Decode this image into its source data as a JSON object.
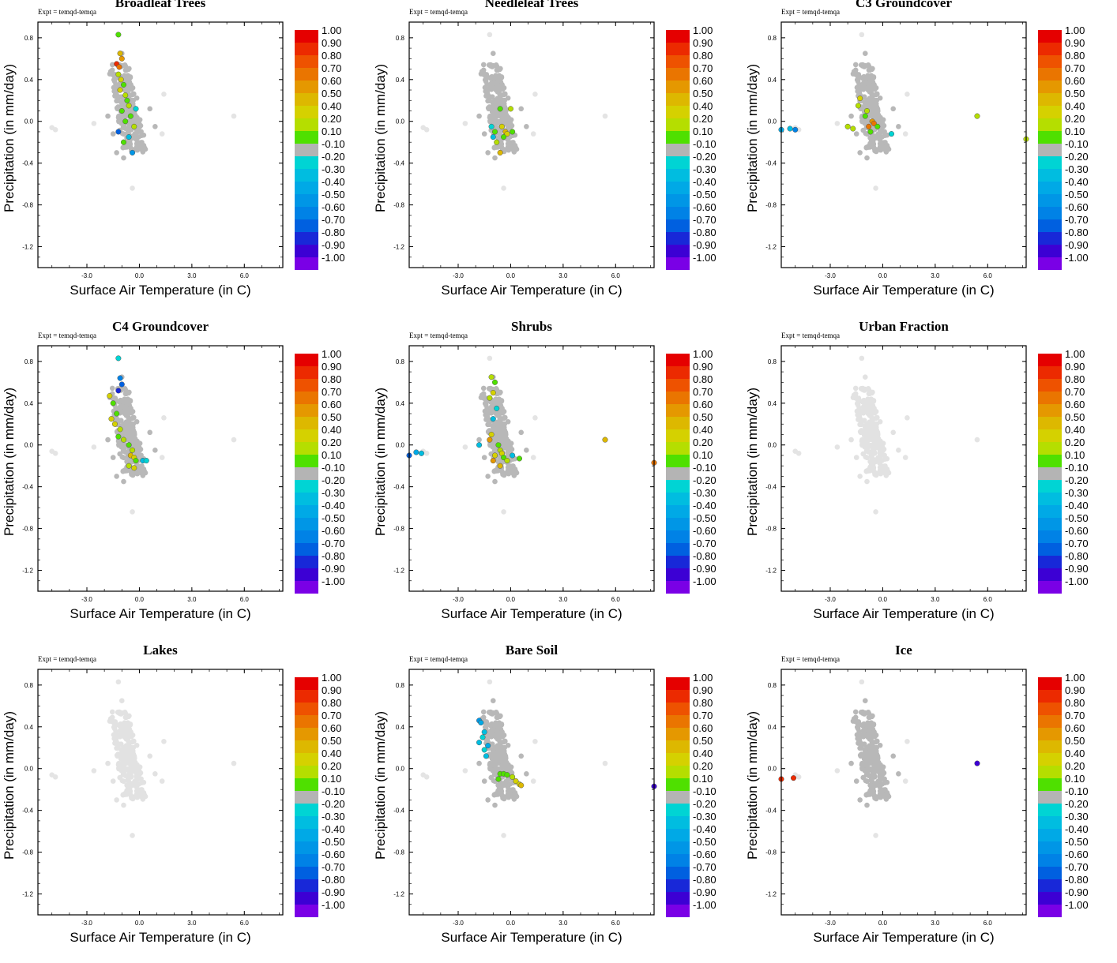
{
  "expt_label": "Expt = temqd-temqa",
  "axis_labels": {
    "x": "Surface Air Temperature (in C)",
    "y": "Precipitation (in mm/day)"
  },
  "colorbar": {
    "labels": [
      "1.00",
      "0.90",
      "0.80",
      "0.70",
      "0.60",
      "0.50",
      "0.40",
      "0.20",
      "0.10",
      "-0.10",
      "-0.20",
      "-0.30",
      "-0.40",
      "-0.50",
      "-0.60",
      "-0.70",
      "-0.80",
      "-0.90",
      "-1.00"
    ],
    "colors": [
      "#e50000",
      "#ec2a00",
      "#ee5200",
      "#ea7500",
      "#e59800",
      "#ddb800",
      "#d5d100",
      "#b5de00",
      "#4fe000",
      "#b4b4b4",
      "#00d4d4",
      "#00bde0",
      "#00a9e6",
      "#0096e6",
      "#0082e6",
      "#0060e0",
      "#1828d8",
      "#3c00d4",
      "#7a00e6"
    ]
  },
  "chart_data": [
    {
      "type": "scatter",
      "title": "Broadleaf Trees",
      "xlabel": "Surface Air Temperature (in C)",
      "ylabel": "Precipitation (in mm/day)",
      "xlim": [
        -5.8,
        8.2
      ],
      "ylim": [
        -1.4,
        0.95
      ],
      "xticks": [
        "-3.0",
        "0.0",
        "3.0",
        "6.0"
      ],
      "yticks": [
        "0.8",
        "0.4",
        "0.0",
        "-0.4",
        "-0.8",
        "-1.2"
      ],
      "colored_points": [
        [
          -1.2,
          0.83,
          0.1
        ],
        [
          -1.1,
          0.65,
          0.5
        ],
        [
          -1.3,
          0.55,
          0.9
        ],
        [
          -1.15,
          0.52,
          0.7
        ],
        [
          -1.0,
          0.6,
          0.6
        ],
        [
          -1.2,
          0.45,
          0.2
        ],
        [
          -1.05,
          0.4,
          0.3
        ],
        [
          -0.9,
          0.35,
          0.1
        ],
        [
          -1.1,
          0.3,
          0.4
        ],
        [
          -0.8,
          0.25,
          0.2
        ],
        [
          -0.7,
          0.2,
          0.1
        ],
        [
          -0.6,
          0.15,
          0.2
        ],
        [
          -1.0,
          0.1,
          0.1
        ],
        [
          -0.5,
          0.05,
          0.1
        ],
        [
          -0.2,
          0.12,
          -0.2
        ],
        [
          -1.2,
          -0.1,
          -0.7
        ],
        [
          -0.6,
          -0.15,
          -0.3
        ],
        [
          -0.9,
          -0.2,
          0.1
        ],
        [
          -0.4,
          -0.3,
          -0.5
        ],
        [
          -0.3,
          -0.05,
          0.2
        ],
        [
          -0.8,
          0.0,
          0.1
        ]
      ]
    },
    {
      "type": "scatter",
      "title": "Needleleaf Trees",
      "xlabel": "Surface Air Temperature (in C)",
      "ylabel": "Precipitation (in mm/day)",
      "xlim": [
        -5.8,
        8.2
      ],
      "ylim": [
        -1.4,
        0.95
      ],
      "xticks": [
        "-3.0",
        "0.0",
        "3.0",
        "6.0"
      ],
      "yticks": [
        "0.8",
        "0.4",
        "0.0",
        "-0.4",
        "-0.8",
        "-1.2"
      ],
      "colored_points": [
        [
          -0.6,
          0.12,
          0.1
        ],
        [
          0.0,
          0.12,
          0.2
        ],
        [
          -0.5,
          -0.05,
          0.4
        ],
        [
          -0.3,
          -0.1,
          0.5
        ],
        [
          -0.2,
          -0.12,
          0.3
        ],
        [
          0.1,
          -0.1,
          0.1
        ],
        [
          -0.6,
          -0.3,
          0.5
        ],
        [
          -1.1,
          -0.05,
          -0.2
        ],
        [
          -0.9,
          -0.1,
          0.1
        ],
        [
          -1.0,
          -0.15,
          -0.3
        ],
        [
          -0.8,
          -0.2,
          0.2
        ],
        [
          -0.4,
          -0.15,
          0.1
        ]
      ]
    },
    {
      "type": "scatter",
      "title": "C3 Groundcover",
      "xlabel": "Surface Air Temperature (in C)",
      "ylabel": "Precipitation (in mm/day)",
      "xlim": [
        -5.8,
        8.2
      ],
      "ylim": [
        -1.4,
        0.95
      ],
      "xticks": [
        "-3.0",
        "0.0",
        "3.0",
        "6.0"
      ],
      "yticks": [
        "0.8",
        "0.4",
        "0.0",
        "-0.4",
        "-0.8",
        "-1.2"
      ],
      "colored_points": [
        [
          -5.8,
          -0.08,
          -0.4
        ],
        [
          -5.3,
          -0.07,
          -0.3
        ],
        [
          -5.0,
          -0.08,
          -0.6
        ],
        [
          -2.0,
          -0.05,
          0.2
        ],
        [
          -1.7,
          -0.07,
          0.2
        ],
        [
          -1.3,
          0.22,
          0.3
        ],
        [
          -1.4,
          0.15,
          0.2
        ],
        [
          -1.0,
          0.05,
          0.1
        ],
        [
          -0.8,
          -0.05,
          0.7
        ],
        [
          -0.6,
          0.0,
          0.6
        ],
        [
          -0.5,
          -0.02,
          0.7
        ],
        [
          -0.9,
          0.1,
          0.2
        ],
        [
          -0.7,
          -0.1,
          0.1
        ],
        [
          -0.3,
          -0.05,
          0.1
        ],
        [
          0.5,
          -0.12,
          -0.2
        ],
        [
          5.4,
          0.05,
          0.2
        ],
        [
          8.2,
          -0.17,
          0.2
        ]
      ]
    },
    {
      "type": "scatter",
      "title": "C4 Groundcover",
      "xlabel": "Surface Air Temperature (in C)",
      "ylabel": "Precipitation (in mm/day)",
      "xlim": [
        -5.8,
        8.2
      ],
      "ylim": [
        -1.4,
        0.95
      ],
      "xticks": [
        "-3.0",
        "0.0",
        "3.0",
        "6.0"
      ],
      "yticks": [
        "0.8",
        "0.4",
        "0.0",
        "-0.4",
        "-0.8",
        "-1.2"
      ],
      "colored_points": [
        [
          -1.2,
          0.83,
          -0.2
        ],
        [
          -1.1,
          0.64,
          -0.6
        ],
        [
          -1.0,
          0.58,
          -0.7
        ],
        [
          -1.2,
          0.52,
          -0.8
        ],
        [
          -1.7,
          0.47,
          0.3
        ],
        [
          -1.5,
          0.4,
          0.1
        ],
        [
          -1.3,
          0.3,
          0.1
        ],
        [
          -1.6,
          0.25,
          0.4
        ],
        [
          -1.4,
          0.2,
          0.3
        ],
        [
          -1.1,
          0.15,
          0.2
        ],
        [
          -1.2,
          0.08,
          0.1
        ],
        [
          -0.9,
          0.05,
          0.2
        ],
        [
          -0.6,
          0.0,
          0.1
        ],
        [
          -0.4,
          -0.05,
          0.2
        ],
        [
          -0.5,
          -0.1,
          0.5
        ],
        [
          -0.3,
          -0.12,
          0.4
        ],
        [
          -0.2,
          -0.15,
          0.1
        ],
        [
          0.2,
          -0.15,
          -0.3
        ],
        [
          0.4,
          -0.15,
          -0.2
        ],
        [
          -0.6,
          -0.2,
          0.2
        ],
        [
          -0.3,
          -0.22,
          0.3
        ]
      ]
    },
    {
      "type": "scatter",
      "title": "Shrubs",
      "xlabel": "Surface Air Temperature (in C)",
      "ylabel": "Precipitation (in mm/day)",
      "xlim": [
        -5.8,
        8.2
      ],
      "ylim": [
        -1.4,
        0.95
      ],
      "xticks": [
        "-3.0",
        "0.0",
        "3.0",
        "6.0"
      ],
      "yticks": [
        "0.8",
        "0.4",
        "0.0",
        "-0.4",
        "-0.8",
        "-1.2"
      ],
      "colored_points": [
        [
          -5.8,
          -0.1,
          -0.7
        ],
        [
          -5.4,
          -0.07,
          -0.4
        ],
        [
          -5.1,
          -0.08,
          -0.3
        ],
        [
          -1.1,
          0.65,
          0.2
        ],
        [
          -0.9,
          0.6,
          0.1
        ],
        [
          -1.0,
          0.5,
          0.3
        ],
        [
          -1.2,
          0.45,
          0.2
        ],
        [
          -0.8,
          0.35,
          -0.2
        ],
        [
          -1.0,
          0.25,
          -0.3
        ],
        [
          -1.1,
          0.1,
          0.4
        ],
        [
          -1.2,
          0.05,
          0.6
        ],
        [
          -1.8,
          0.0,
          -0.3
        ],
        [
          -0.7,
          0.0,
          0.1
        ],
        [
          -0.6,
          -0.05,
          0.2
        ],
        [
          -0.5,
          -0.08,
          0.3
        ],
        [
          -0.9,
          -0.1,
          0.4
        ],
        [
          -1.0,
          -0.15,
          0.6
        ],
        [
          -0.4,
          -0.12,
          0.1
        ],
        [
          -0.2,
          -0.15,
          0.2
        ],
        [
          0.1,
          -0.1,
          -0.3
        ],
        [
          0.5,
          -0.13,
          0.1
        ],
        [
          -0.6,
          -0.2,
          0.5
        ],
        [
          5.4,
          0.05,
          0.5
        ],
        [
          8.2,
          -0.17,
          0.7
        ]
      ]
    },
    {
      "type": "scatter",
      "title": "Urban Fraction",
      "xlabel": "Surface Air Temperature (in C)",
      "ylabel": "Precipitation (in mm/day)",
      "xlim": [
        -5.8,
        8.2
      ],
      "ylim": [
        -1.4,
        0.95
      ],
      "xticks": [
        "-3.0",
        "0.0",
        "3.0",
        "6.0"
      ],
      "yticks": [
        "0.8",
        "0.4",
        "0.0",
        "-0.4",
        "-0.8",
        "-1.2"
      ],
      "colored_points": []
    },
    {
      "type": "scatter",
      "title": "Lakes",
      "xlabel": "Surface Air Temperature (in C)",
      "ylabel": "Precipitation (in mm/day)",
      "xlim": [
        -5.8,
        8.2
      ],
      "ylim": [
        -1.4,
        0.95
      ],
      "xticks": [
        "-3.0",
        "0.0",
        "3.0",
        "6.0"
      ],
      "yticks": [
        "0.8",
        "0.4",
        "0.0",
        "-0.4",
        "-0.8",
        "-1.2"
      ],
      "colored_points": []
    },
    {
      "type": "scatter",
      "title": "Bare Soil",
      "xlabel": "Surface Air Temperature (in C)",
      "ylabel": "Precipitation (in mm/day)",
      "xlim": [
        -5.8,
        8.2
      ],
      "ylim": [
        -1.4,
        0.95
      ],
      "xticks": [
        "-3.0",
        "0.0",
        "3.0",
        "6.0"
      ],
      "yticks": [
        "0.8",
        "0.4",
        "0.0",
        "-0.4",
        "-0.8",
        "-1.2"
      ],
      "colored_points": [
        [
          -1.8,
          0.46,
          -0.5
        ],
        [
          -1.7,
          0.44,
          -0.4
        ],
        [
          -1.5,
          0.35,
          -0.3
        ],
        [
          -1.6,
          0.3,
          -0.2
        ],
        [
          -1.8,
          0.25,
          -0.3
        ],
        [
          -1.3,
          0.22,
          -0.4
        ],
        [
          -1.5,
          0.18,
          -0.2
        ],
        [
          -1.4,
          0.12,
          -0.3
        ],
        [
          -0.6,
          -0.05,
          0.1
        ],
        [
          -0.4,
          -0.05,
          0.1
        ],
        [
          -0.2,
          -0.06,
          0.1
        ],
        [
          -0.7,
          -0.1,
          0.1
        ],
        [
          0.1,
          -0.08,
          0.2
        ],
        [
          0.3,
          -0.12,
          0.3
        ],
        [
          0.5,
          -0.15,
          0.4
        ],
        [
          0.6,
          -0.16,
          0.5
        ],
        [
          8.2,
          -0.17,
          -0.9
        ]
      ]
    },
    {
      "type": "scatter",
      "title": "Ice",
      "xlabel": "Surface Air Temperature (in C)",
      "ylabel": "Precipitation (in mm/day)",
      "xlim": [
        -5.8,
        8.2
      ],
      "ylim": [
        -1.4,
        0.95
      ],
      "xticks": [
        "-3.0",
        "0.0",
        "3.0",
        "6.0"
      ],
      "yticks": [
        "0.8",
        "0.4",
        "0.0",
        "-0.4",
        "-0.8",
        "-1.2"
      ],
      "colored_points": [
        [
          -5.8,
          -0.1,
          0.9
        ],
        [
          -5.1,
          -0.09,
          0.9
        ],
        [
          5.4,
          0.05,
          -0.9
        ]
      ]
    }
  ]
}
